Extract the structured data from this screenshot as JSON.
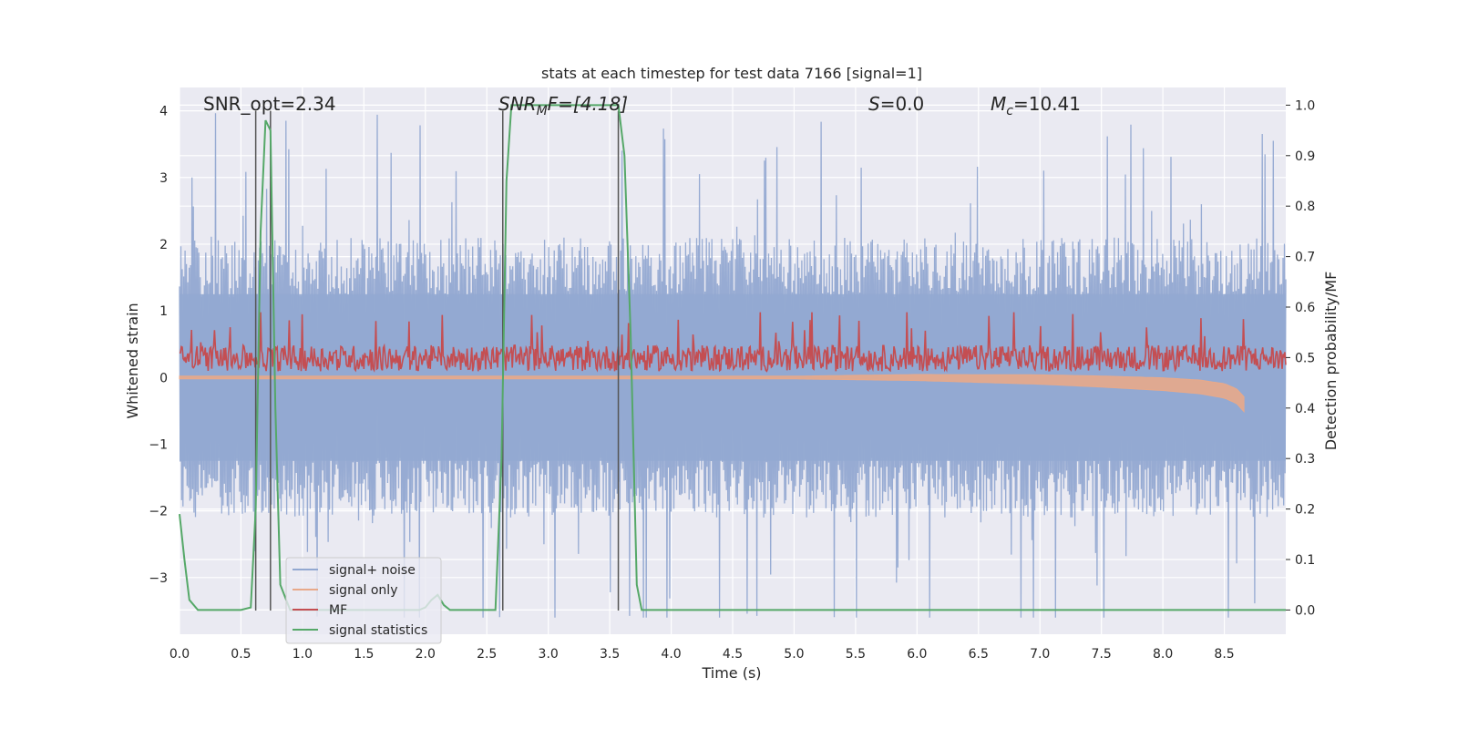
{
  "chart_data": {
    "type": "line",
    "title": "stats at each timestep for test data 7166 [signal=1]",
    "xlabel": "Time (s)",
    "ylabel_left": "Whitened strain",
    "ylabel_right": "Detection probability/MF",
    "xlim": [
      0.0,
      9.0
    ],
    "ylim_left": [
      -3.85,
      4.35
    ],
    "ylim_right": [
      -0.048,
      1.035
    ],
    "xticks": [
      "0.0",
      "0.5",
      "1.0",
      "1.5",
      "2.0",
      "2.5",
      "3.0",
      "3.5",
      "4.0",
      "4.5",
      "5.0",
      "5.5",
      "6.0",
      "6.5",
      "7.0",
      "7.5",
      "8.0",
      "8.5"
    ],
    "yticks_left": [
      "4",
      "3",
      "2",
      "1",
      "0",
      "−1",
      "−2",
      "−3"
    ],
    "yticks_right": [
      "1.0",
      "0.9",
      "0.8",
      "0.7",
      "0.6",
      "0.5",
      "0.4",
      "0.3",
      "0.2",
      "0.1",
      "0.0"
    ],
    "grid": true,
    "legend_position": "bottom-left",
    "annotations": {
      "snr_opt": "SNR_opt=2.34",
      "snr_mf_main": "SNR",
      "snr_mf_sub": "M",
      "snr_mf_rest": "F=[4.18]",
      "s_main": "S",
      "s_rest": "=0.0",
      "mc_main": "M",
      "mc_sub": "c",
      "mc_rest": "=10.41"
    },
    "vertical_markers_s": [
      0.62,
      0.74,
      2.63,
      3.57
    ],
    "series": [
      {
        "name": "signal+ noise",
        "color": "#92a8d1",
        "axis": "left",
        "description_values": {
          "band_low": -2.0,
          "band_high": 2.0,
          "peak_max": 4.0,
          "peak_min": -3.5
        }
      },
      {
        "name": "signal only",
        "color": "#e8a98a",
        "axis": "left",
        "x": [
          0.0,
          6.0,
          7.0,
          7.5,
          8.0,
          8.3,
          8.5,
          8.6,
          8.66
        ],
        "y_center": [
          0.0,
          0.0,
          -0.03,
          -0.06,
          -0.1,
          -0.14,
          -0.2,
          -0.28,
          -0.4
        ]
      },
      {
        "name": "MF",
        "color": "#c44e52",
        "axis": "left",
        "baseline": 0.27,
        "spread": 0.3
      },
      {
        "name": "signal statistics",
        "color": "#55a868",
        "axis": "right",
        "x": [
          0.0,
          0.04,
          0.08,
          0.15,
          0.2,
          0.3,
          0.5,
          0.58,
          0.62,
          0.66,
          0.7,
          0.74,
          0.78,
          0.82,
          0.9,
          1.0,
          1.2,
          1.5,
          1.8,
          1.95,
          2.0,
          2.05,
          2.1,
          2.15,
          2.2,
          2.3,
          2.45,
          2.57,
          2.62,
          2.66,
          2.7,
          2.8,
          3.0,
          3.3,
          3.5,
          3.57,
          3.62,
          3.67,
          3.72,
          3.76,
          3.8,
          4.0,
          5.0,
          6.0,
          7.0,
          8.0,
          9.0
        ],
        "y": [
          0.19,
          0.1,
          0.02,
          0.0,
          0.0,
          0.0,
          0.0,
          0.005,
          0.2,
          0.75,
          0.97,
          0.95,
          0.4,
          0.05,
          0.0,
          0.0,
          0.0,
          0.0,
          0.0,
          0.0,
          0.005,
          0.02,
          0.03,
          0.01,
          0.0,
          0.0,
          0.0,
          0.0,
          0.3,
          0.85,
          1.0,
          1.0,
          1.0,
          1.0,
          1.0,
          1.0,
          0.9,
          0.55,
          0.05,
          0.0,
          0.0,
          0.0,
          0.0,
          0.0,
          0.0,
          0.0,
          0.0
        ]
      }
    ]
  }
}
